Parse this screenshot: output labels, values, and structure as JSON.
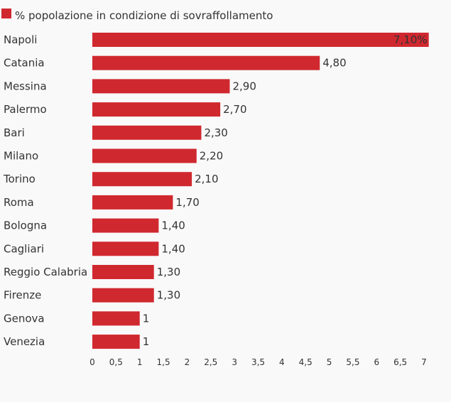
{
  "chart_data": {
    "type": "bar",
    "orientation": "horizontal",
    "categories": [
      "Napoli",
      "Catania",
      "Messina",
      "Palermo",
      "Bari",
      "Milano",
      "Torino",
      "Roma",
      "Bologna",
      "Cagliari",
      "Reggio Calabria",
      "Firenze",
      "Genova",
      "Venezia"
    ],
    "series": [
      {
        "name": "% popolazione in condizione di sovraffollamento",
        "values": [
          7.1,
          4.8,
          2.9,
          2.7,
          2.3,
          2.2,
          2.1,
          1.7,
          1.4,
          1.4,
          1.3,
          1.3,
          1,
          1
        ],
        "value_labels": [
          "7,10%",
          "4,80",
          "2,90",
          "2,70",
          "2,30",
          "2,20",
          "2,10",
          "1,70",
          "1,40",
          "1,40",
          "1,30",
          "1,30",
          "1",
          "1"
        ]
      }
    ],
    "xlim": [
      0,
      7
    ],
    "x_ticks": [
      0,
      0.5,
      1,
      1.5,
      2,
      2.5,
      3,
      3.5,
      4,
      4.5,
      5,
      5.5,
      6,
      6.5,
      7
    ],
    "x_tick_labels": [
      "0",
      "0,5",
      "1",
      "1,5",
      "2",
      "2,5",
      "3",
      "3,5",
      "4",
      "4,5",
      "5",
      "5,5",
      "6",
      "6,5",
      "7"
    ],
    "legend_position": "top-left",
    "grid": false,
    "colors": {
      "bar": "#d0282f",
      "background": "#f9f9f9",
      "text": "#333333"
    }
  }
}
